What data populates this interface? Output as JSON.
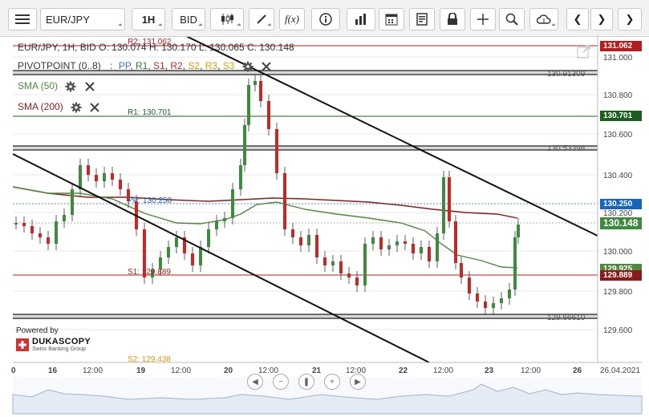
{
  "toolbar": {
    "symbol": "EUR/JPY",
    "timeframe": "1H",
    "price_side": "BID"
  },
  "legend": {
    "ohlc": "EUR/JPY, 1H, BID   O: 130.074 H: 130.170 L: 130.065 C: 130.148",
    "pivot_label": "PIVOTPOINT (0..8)",
    "pivot_items": [
      {
        "label": "PP",
        "color": "#3a6fd8"
      },
      {
        "label": "R1",
        "color": "#2e7d32"
      },
      {
        "label": "S1",
        "color": "#c62828"
      },
      {
        "label": "R2",
        "color": "#c62828"
      },
      {
        "label": "S2",
        "color": "#e69500"
      },
      {
        "label": "R3",
        "color": "#e69500"
      },
      {
        "label": "S3",
        "color": "#c9a800"
      }
    ],
    "sma50": "SMA (50)",
    "sma200": "SMA (200)"
  },
  "levels": {
    "r2": "R2: 131.062",
    "r1": "R1: 130.701",
    "pp": "PP: 130.250",
    "s1": "S1: 129.889",
    "s2": "S2: 129.438",
    "h1": "130.91309",
    "h2": "130.53398",
    "h3": "129.66610"
  },
  "price_axis": {
    "ticks": [
      "131.000",
      "130.800",
      "130.600",
      "130.400",
      "130.200",
      "130.000",
      "129.800",
      "129.600"
    ],
    "tags": {
      "r2": "131.062",
      "r1": "130.701",
      "pp": "130.250",
      "last": "130.148",
      "sma50": "129.925",
      "s1": "129.889"
    }
  },
  "time_axis": {
    "labels": [
      "0",
      "16",
      "12:00",
      "19",
      "12:00",
      "20",
      "12:00",
      "21",
      "12:00",
      "22",
      "12:00",
      "23",
      "12:00",
      "26",
      "26.04.2021"
    ]
  },
  "branding": {
    "powered_by": "Powered by",
    "name": "DUKASCOPY",
    "tagline": "Swiss Banking Group"
  },
  "colors": {
    "sma50": "#4a8a3a",
    "sma200": "#8b1a1a",
    "candle": "#3f8a3f",
    "r2_line": "#b71c1c",
    "r1_line": "#1b5e20",
    "pp_line": "#1565c0",
    "s1_line": "#b71c1c"
  }
}
